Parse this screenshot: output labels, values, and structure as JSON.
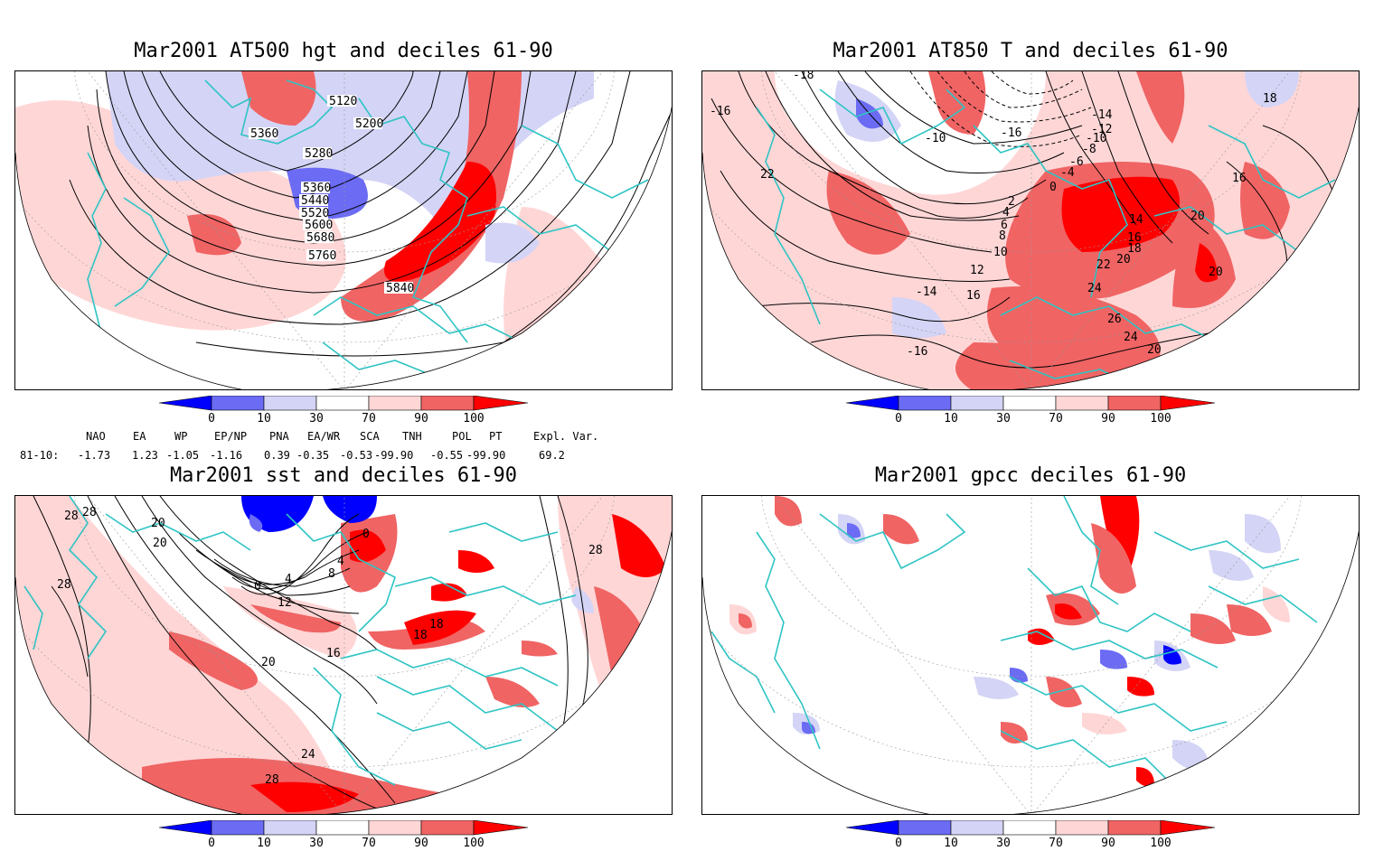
{
  "panels": [
    {
      "title": "Mar2001 AT500 hgt and deciles 61-90",
      "contour_labels": [
        "5120",
        "5200",
        "5360",
        "5280",
        "5360",
        "5440",
        "5520",
        "5600",
        "5680",
        "5760",
        "5840"
      ]
    },
    {
      "title": "Mar2001 AT850 T and deciles 61-90",
      "contour_labels": [
        "-18",
        "-16",
        "-14",
        "-12",
        "-10",
        "-16",
        "-10",
        "-8",
        "-6",
        "-4",
        "0",
        "2",
        "4",
        "6",
        "8",
        "10",
        "12",
        "14",
        "16",
        "18",
        "20",
        "22",
        "24",
        "26",
        "20",
        "16",
        "22",
        "20",
        "18"
      ]
    },
    {
      "title": "Mar2001 sst and deciles 61-90",
      "contour_labels": [
        "28",
        "28",
        "20",
        "20",
        "28",
        "0",
        "4",
        "8",
        "4",
        "12",
        "16",
        "20",
        "24",
        "28",
        "18",
        "18",
        "28",
        "0"
      ]
    },
    {
      "title": "Mar2001 gpcc deciles 61-90",
      "contour_labels": []
    }
  ],
  "colorbar": {
    "ticks": [
      "0",
      "10",
      "30",
      "70",
      "90",
      "100"
    ],
    "colors": [
      "#0000ff",
      "#6b6bf4",
      "#d4d4f6",
      "#ffffff",
      "#ffd6d6",
      "#f06464",
      "#ff0000"
    ]
  },
  "indices": {
    "headers": [
      "NAO",
      "EA",
      "WP",
      "EP/NP",
      "PNA",
      "EA/WR",
      "SCA",
      "TNH",
      "POL",
      "PT",
      "Expl. Var."
    ],
    "row_label": "81-10:",
    "values": [
      "-1.73",
      "1.23",
      "-1.05",
      "-1.16",
      "0.39",
      "-0.35",
      "-0.53",
      "-99.90",
      "-0.55",
      "-99.90",
      "69.2"
    ]
  },
  "colors": {
    "coast": "#2fc4c4",
    "contour": "#000000"
  }
}
